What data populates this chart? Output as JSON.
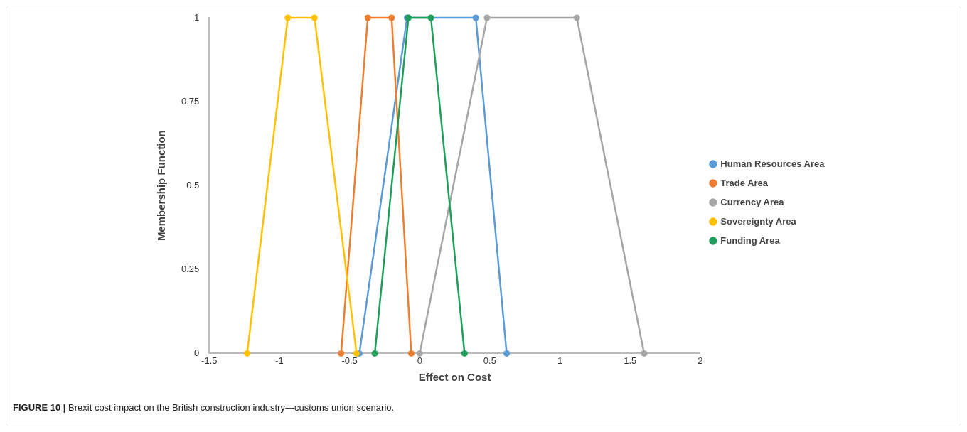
{
  "chart_data": {
    "type": "line",
    "xlabel": "Effect on Cost",
    "ylabel": "Membership Function",
    "xlim": [
      -1.5,
      2
    ],
    "xticks": [
      -1.5,
      -1,
      -0.5,
      0,
      0.5,
      1,
      1.5,
      2
    ],
    "ylim": [
      0,
      1
    ],
    "yticks": [
      0,
      0.25,
      0.5,
      0.75,
      1
    ],
    "grid": false,
    "legend": "right",
    "marker": "circle",
    "line_style": "solid",
    "series": [
      {
        "name": "Human Resources Area",
        "color": "#5b9bd5",
        "x": [
          -0.43,
          -0.09,
          0.4,
          0.62
        ],
        "values": [
          0,
          1,
          1,
          0
        ]
      },
      {
        "name": "Trade Area",
        "color": "#ed7d31",
        "x": [
          -0.56,
          -0.37,
          -0.2,
          -0.06
        ],
        "values": [
          0,
          1,
          1,
          0
        ]
      },
      {
        "name": "Currency Area",
        "color": "#a5a5a5",
        "x": [
          0,
          0.48,
          1.12,
          1.6
        ],
        "values": [
          0,
          1,
          1,
          0
        ]
      },
      {
        "name": "Sovereignty Area",
        "color": "#ffc000",
        "x": [
          -1.23,
          -0.94,
          -0.75,
          -0.45
        ],
        "values": [
          0,
          1,
          1,
          0
        ]
      },
      {
        "name": "Funding Area",
        "color": "#1e9e5a",
        "x": [
          -0.32,
          -0.08,
          0.08,
          0.32
        ],
        "values": [
          0,
          1,
          1,
          0
        ]
      }
    ],
    "annotations": [
      "FIGURE 10 | Brexit cost impact on the British construction industry—customs union scenario."
    ]
  }
}
